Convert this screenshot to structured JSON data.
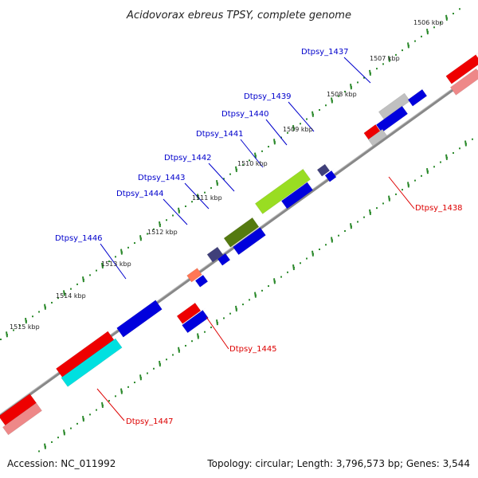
{
  "title": "Acidovorax ebreus TPSY, complete genome",
  "footer": {
    "accession": "Accession: NC_011992",
    "summary": "Topology: circular; Length: 3,796,573 bp; Genes: 3,544"
  },
  "kbp_ticks": [
    "1506 kbp",
    "1507 kbp",
    "1508 kbp",
    "1509 kbp",
    "1510 kbp",
    "1511 kbp",
    "1512 kbp",
    "1513 kbp",
    "1514 kbp",
    "1515 kbp"
  ],
  "gene_labels": {
    "outer": [
      "Dtpsy_1437",
      "Dtpsy_1439",
      "Dtpsy_1440",
      "Dtpsy_1441",
      "Dtpsy_1442",
      "Dtpsy_1443",
      "Dtpsy_1444",
      "Dtpsy_1446"
    ],
    "inner": [
      "Dtpsy_1438",
      "Dtpsy_1445",
      "Dtpsy_1447"
    ]
  },
  "colors": {
    "backbone": "#8a8a8a",
    "tick": "#2e8b2e",
    "outer_label": "#0000cc",
    "inner_label": "#dd0000",
    "cds_blue": "#0000dd",
    "cds_red": "#ee0000",
    "cds_pink": "#ee8888",
    "cds_gray": "#c0c0c0",
    "cds_purple": "#40407a",
    "cds_olive": "#557a10",
    "cds_lime": "#99dd22",
    "cds_salmon": "#ff7755",
    "cds_cyan": "#00e0e0"
  }
}
